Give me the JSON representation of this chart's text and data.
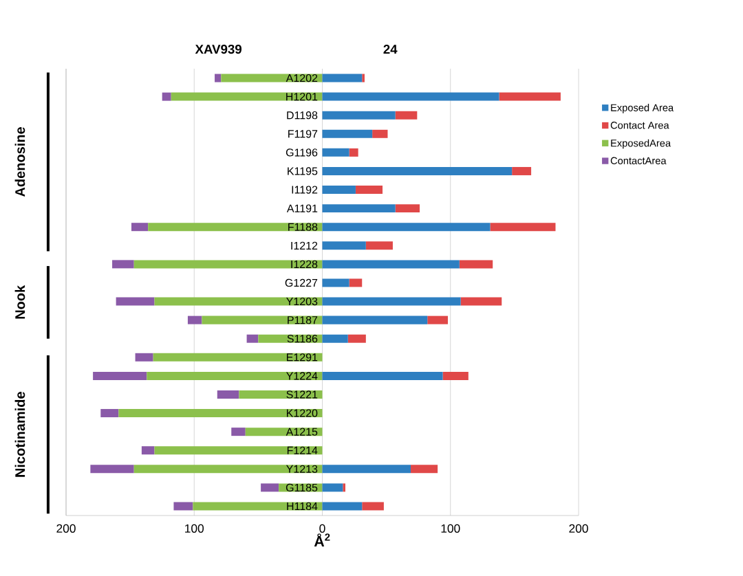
{
  "chart_data": {
    "type": "bar",
    "orientation": "horizontal",
    "stacked": true,
    "categories": [
      "A1202",
      "H1201",
      "D1198",
      "F1197",
      "G1196",
      "K1195",
      "I1192",
      "A1191",
      "F1188",
      "I1212",
      "I1228",
      "G1227",
      "Y1203",
      "P1187",
      "S1186",
      "E1291",
      "Y1224",
      "S1221",
      "K1220",
      "A1215",
      "F1214",
      "Y1213",
      "G1185",
      "H1184"
    ],
    "series": [
      {
        "name": "Exposed Area",
        "color": "#2e7fc1",
        "values": [
          31,
          138,
          57,
          39,
          21,
          148,
          26,
          57,
          131,
          34,
          107,
          21,
          108,
          82,
          20,
          null,
          94,
          null,
          null,
          null,
          null,
          69,
          16,
          31
        ]
      },
      {
        "name": "Contact Area",
        "color": "#e04848",
        "values": [
          2,
          48,
          17,
          12,
          7,
          15,
          21,
          19,
          51,
          21,
          26,
          10,
          32,
          16,
          14,
          null,
          20,
          null,
          null,
          null,
          null,
          21,
          2,
          17
        ]
      },
      {
        "name": "ExposedArea",
        "color": "#8cc04c",
        "values": [
          -79,
          -118,
          null,
          null,
          null,
          null,
          null,
          null,
          -136,
          null,
          -147,
          null,
          -131,
          -94,
          -50,
          -132,
          -137,
          -65,
          -159,
          -60,
          -131,
          -147,
          -34,
          -101
        ]
      },
      {
        "name": "ContactArea",
        "color": "#8a5aa8",
        "values": [
          -5,
          -7,
          null,
          null,
          null,
          null,
          null,
          null,
          -13,
          null,
          -17,
          null,
          -30,
          -11,
          -9,
          -14,
          -42,
          -17,
          -14,
          -11,
          -10,
          -34,
          -14,
          -15
        ]
      }
    ],
    "xlim": [
      -200,
      200
    ],
    "xticks": [
      {
        "value": -200,
        "label": "200"
      },
      {
        "value": -100,
        "label": "100"
      },
      0,
      100,
      200
    ],
    "xlabel": "Å$^{2}$",
    "grid": "x",
    "legend": "right",
    "annotations": [
      "XAV939",
      "24",
      "Adenosine",
      "Nook",
      "Nicotinamide"
    ]
  }
}
